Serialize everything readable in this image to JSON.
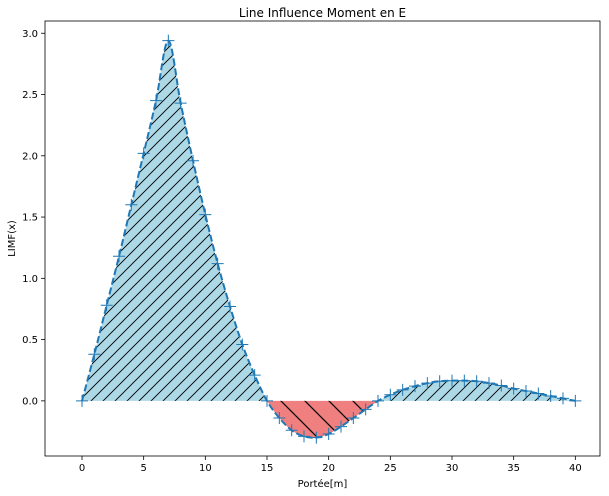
{
  "chart_data": {
    "type": "area",
    "title": "Line Influence Moment en E",
    "xlabel": "Portée[m]",
    "ylabel": "LIMF(x)",
    "xlim": [
      -3,
      42
    ],
    "ylim": [
      -0.45,
      3.1
    ],
    "xticks": [
      "0",
      "5",
      "10",
      "15",
      "20",
      "25",
      "30",
      "35",
      "40"
    ],
    "xtick_values": [
      0,
      5,
      10,
      15,
      20,
      25,
      30,
      35,
      40
    ],
    "yticks": [
      "0.0",
      "0.5",
      "1.0",
      "1.5",
      "2.0",
      "2.5",
      "3.0"
    ],
    "ytick_values": [
      0.0,
      0.5,
      1.0,
      1.5,
      2.0,
      2.5,
      3.0
    ],
    "grid": false,
    "series": [
      {
        "style": "dashed line with plus markers",
        "x": [
          0,
          1,
          2,
          3,
          4,
          5,
          6,
          7,
          8,
          9,
          10,
          11,
          12,
          13,
          14,
          15,
          16,
          17,
          18,
          19,
          20,
          21,
          22,
          23,
          24,
          25,
          26,
          27,
          28,
          29,
          30,
          31,
          32,
          33,
          34,
          35,
          36,
          37,
          38,
          39,
          40
        ],
        "y": [
          0.0,
          0.38,
          0.78,
          1.18,
          1.6,
          2.02,
          2.45,
          2.94,
          2.43,
          1.96,
          1.52,
          1.12,
          0.77,
          0.46,
          0.21,
          0.0,
          -0.14,
          -0.24,
          -0.29,
          -0.3,
          -0.27,
          -0.21,
          -0.14,
          -0.07,
          0.0,
          0.05,
          0.09,
          0.12,
          0.145,
          0.16,
          0.165,
          0.165,
          0.16,
          0.145,
          0.125,
          0.1,
          0.08,
          0.06,
          0.04,
          0.02,
          0.0
        ]
      }
    ],
    "fill_positive_color": "#add8e6",
    "fill_negative_color": "#f08080",
    "line_color": "#1f77b4",
    "hatch": "diagonal"
  }
}
